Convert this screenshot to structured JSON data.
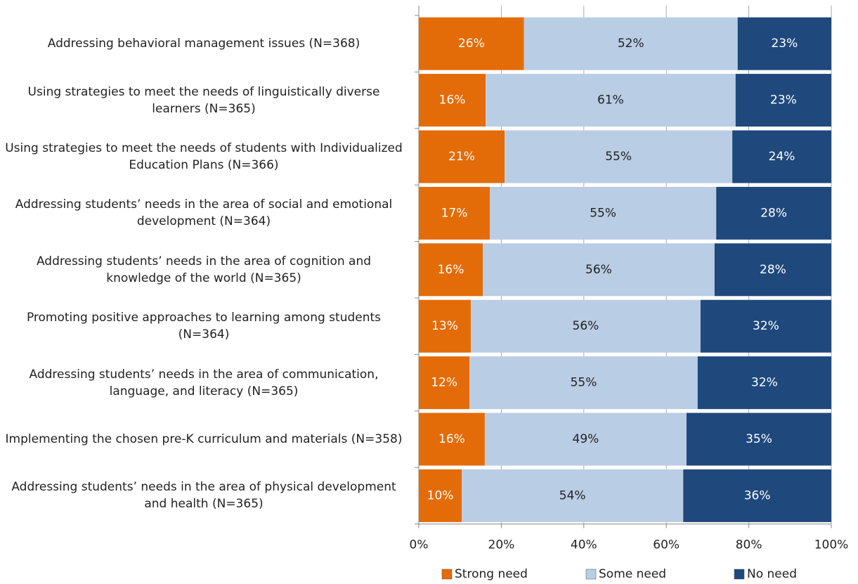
{
  "chart_data": {
    "type": "stacked-bar-horizontal",
    "categories": [
      "Addressing behavioral management issues (N=368)",
      "Using strategies to meet the needs of linguistically diverse learners (N=365)",
      "Using strategies to meet the needs of students with Individualized Education Plans (N=366)",
      "Addressing students’ needs in the area of social and emotional development (N=364)",
      "Addressing students’ needs in the area of cognition and knowledge of the world (N=365)",
      "Promoting positive approaches to learning among students (N=364)",
      "Addressing students’ needs in the area of communication, language, and literacy (N=365)",
      "Implementing the chosen pre-K curriculum and materials (N=358)",
      "Addressing students’ needs in the area of physical development and health (N=365)"
    ],
    "series": [
      {
        "name": "Strong need",
        "color": "#e36c09",
        "values": [
          25.5,
          16.2,
          20.8,
          17.2,
          15.5,
          12.6,
          12.3,
          16.0,
          10.4
        ],
        "value_labels": [
          "26%",
          "16%",
          "21%",
          "17%",
          "16%",
          "13%",
          "12%",
          "16%",
          "10%"
        ]
      },
      {
        "name": "Some need",
        "color": "#b9cde5",
        "values": [
          51.8,
          60.6,
          55.2,
          54.9,
          56.2,
          55.7,
          55.3,
          48.9,
          53.7
        ],
        "value_labels": [
          "52%",
          "61%",
          "55%",
          "55%",
          "56%",
          "56%",
          "55%",
          "49%",
          "54%"
        ]
      },
      {
        "name": "No need",
        "color": "#1f497d",
        "values": [
          22.7,
          23.2,
          24.0,
          27.9,
          28.3,
          31.7,
          32.4,
          35.1,
          35.9
        ],
        "value_labels": [
          "23%",
          "23%",
          "24%",
          "28%",
          "28%",
          "32%",
          "32%",
          "35%",
          "36%"
        ]
      }
    ],
    "xlim": [
      0,
      100
    ],
    "xticks": [
      {
        "value": 0,
        "label": "0%"
      },
      {
        "value": 20,
        "label": "20%"
      },
      {
        "value": 40,
        "label": "40%"
      },
      {
        "value": 60,
        "label": "60%"
      },
      {
        "value": 80,
        "label": "80%"
      },
      {
        "value": 100,
        "label": "100%"
      }
    ],
    "grid": true,
    "legend": "bottom"
  }
}
